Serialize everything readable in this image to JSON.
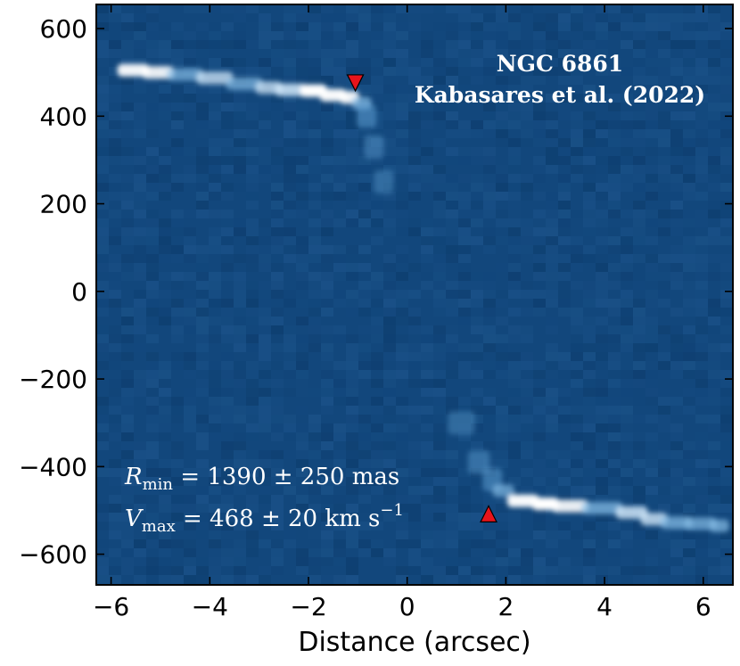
{
  "chart_data": {
    "type": "heatmap",
    "title": "",
    "xlabel": "Distance (arcsec)",
    "ylabel": "",
    "xlim": [
      -6.3,
      6.6
    ],
    "ylim": [
      -670,
      655
    ],
    "xticks": [
      -6,
      -4,
      -2,
      0,
      2,
      4,
      6
    ],
    "xtick_labels": [
      "−6",
      "−4",
      "−2",
      "0",
      "2",
      "4",
      "6"
    ],
    "yticks": [
      600,
      400,
      200,
      0,
      -200,
      -400,
      -600
    ],
    "ytick_labels": [
      "600",
      "400",
      "200",
      "0",
      "−200",
      "−400",
      "−600"
    ],
    "colormap": {
      "background": "#12477c",
      "mid": "#5d9dd0",
      "peak": "#ffffff"
    },
    "annotations": {
      "object": "NGC 6861",
      "reference": "Kabasares et al. (2022)",
      "rmin": {
        "symbol": "R",
        "subscript": "min",
        "rest": " = 1390 ± 250 mas"
      },
      "vmax": {
        "symbol": "V",
        "subscript": "max",
        "rest": " = 468 ± 20 km s",
        "superscript": "−1"
      }
    },
    "markers": [
      {
        "name": "upper",
        "x": -1.05,
        "y": 476,
        "shape": "down-triangle",
        "color": "#e8141b"
      },
      {
        "name": "lower",
        "x": 1.65,
        "y": -508,
        "shape": "up-triangle",
        "color": "#e8141b"
      }
    ],
    "emission_upper": [
      {
        "x": -5.8,
        "y": 505,
        "intensity": 0.9
      },
      {
        "x": -5.3,
        "y": 500,
        "intensity": 0.85
      },
      {
        "x": -4.8,
        "y": 495,
        "intensity": 0.5
      },
      {
        "x": -4.2,
        "y": 487,
        "intensity": 0.65
      },
      {
        "x": -3.6,
        "y": 474,
        "intensity": 0.5
      },
      {
        "x": -3.0,
        "y": 465,
        "intensity": 0.65
      },
      {
        "x": -2.6,
        "y": 460,
        "intensity": 0.8
      },
      {
        "x": -2.1,
        "y": 458,
        "intensity": 1.0
      },
      {
        "x": -1.7,
        "y": 448,
        "intensity": 0.95
      },
      {
        "x": -1.3,
        "y": 443,
        "intensity": 0.9
      },
      {
        "x": -1.05,
        "y": 430,
        "intensity": 0.55
      },
      {
        "x": -0.95,
        "y": 400,
        "intensity": 0.3
      },
      {
        "x": -0.8,
        "y": 330,
        "intensity": 0.15
      },
      {
        "x": -0.6,
        "y": 250,
        "intensity": 0.08
      }
    ],
    "emission_lower": [
      {
        "x": 0.9,
        "y": -300,
        "intensity": 0.08
      },
      {
        "x": 1.3,
        "y": -390,
        "intensity": 0.18
      },
      {
        "x": 1.6,
        "y": -430,
        "intensity": 0.3
      },
      {
        "x": 1.8,
        "y": -455,
        "intensity": 0.45
      },
      {
        "x": 2.1,
        "y": -478,
        "intensity": 0.95
      },
      {
        "x": 2.6,
        "y": -485,
        "intensity": 1.0
      },
      {
        "x": 3.0,
        "y": -490,
        "intensity": 0.85
      },
      {
        "x": 3.6,
        "y": -495,
        "intensity": 0.55
      },
      {
        "x": 4.3,
        "y": -505,
        "intensity": 0.75
      },
      {
        "x": 4.8,
        "y": -520,
        "intensity": 0.7
      },
      {
        "x": 5.2,
        "y": -528,
        "intensity": 0.55
      },
      {
        "x": 5.7,
        "y": -530,
        "intensity": 0.5
      },
      {
        "x": 6.2,
        "y": -535,
        "intensity": 0.55
      }
    ]
  }
}
